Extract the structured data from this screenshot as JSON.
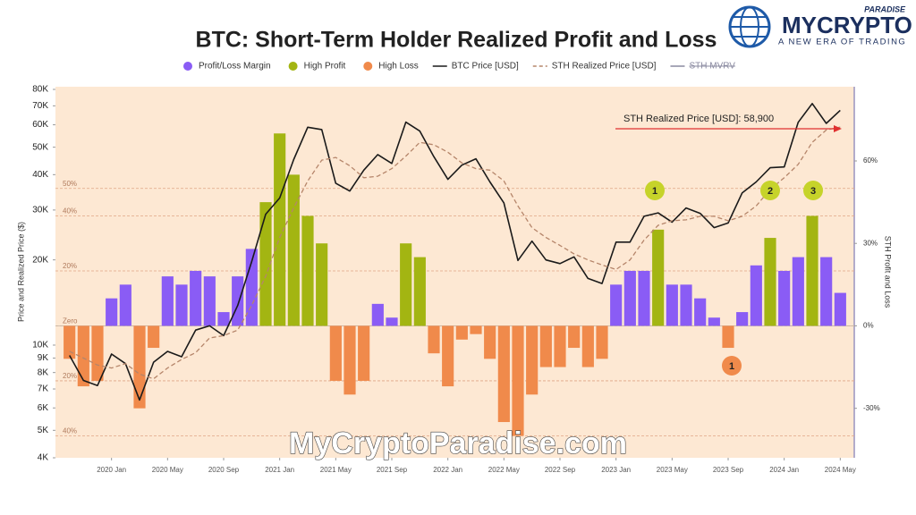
{
  "chart_data": {
    "type": "combo",
    "title": "BTC: Short-Term Holder Realized Profit and Loss",
    "ylabel": "Price and Realized Price ($)",
    "y2label": "STH Profit and Loss",
    "x": [
      "2019-10",
      "2019-11",
      "2019-12",
      "2020-01",
      "2020-02",
      "2020-03",
      "2020-04",
      "2020-05",
      "2020-06",
      "2020-07",
      "2020-08",
      "2020-09",
      "2020-10",
      "2020-11",
      "2020-12",
      "2021-01",
      "2021-02",
      "2021-03",
      "2021-04",
      "2021-05",
      "2021-06",
      "2021-07",
      "2021-08",
      "2021-09",
      "2021-10",
      "2021-11",
      "2021-12",
      "2022-01",
      "2022-02",
      "2022-03",
      "2022-04",
      "2022-05",
      "2022-06",
      "2022-07",
      "2022-08",
      "2022-09",
      "2022-10",
      "2022-11",
      "2022-12",
      "2023-01",
      "2023-02",
      "2023-03",
      "2023-04",
      "2023-05",
      "2023-06",
      "2023-07",
      "2023-08",
      "2023-09",
      "2023-10",
      "2023-11",
      "2023-12",
      "2024-01",
      "2024-02",
      "2024-03",
      "2024-04",
      "2024-05"
    ],
    "xlim": [
      "2019-09",
      "2024-06"
    ],
    "xticks": [
      {
        "value": "2020-01",
        "label": "2020 Jan"
      },
      {
        "value": "2020-05",
        "label": "2020 May"
      },
      {
        "value": "2020-09",
        "label": "2020 Sep"
      },
      {
        "value": "2021-01",
        "label": "2021 Jan"
      },
      {
        "value": "2021-05",
        "label": "2021 May"
      },
      {
        "value": "2021-09",
        "label": "2021 Sep"
      },
      {
        "value": "2022-01",
        "label": "2022 Jan"
      },
      {
        "value": "2022-05",
        "label": "2022 May"
      },
      {
        "value": "2022-09",
        "label": "2022 Sep"
      },
      {
        "value": "2023-01",
        "label": "2023 Jan"
      },
      {
        "value": "2023-05",
        "label": "2023 May"
      },
      {
        "value": "2023-09",
        "label": "2023 Sep"
      },
      {
        "value": "2024-01",
        "label": "2024 Jan"
      },
      {
        "value": "2024-05",
        "label": "2024 May"
      }
    ],
    "ylim": [
      4000,
      80000
    ],
    "log_y": true,
    "yticks": [
      {
        "value": 4000,
        "label": "4K"
      },
      {
        "value": 5000,
        "label": "5K"
      },
      {
        "value": 6000,
        "label": "6K"
      },
      {
        "value": 7000,
        "label": "7K"
      },
      {
        "value": 8000,
        "label": "8K"
      },
      {
        "value": 9000,
        "label": "9K"
      },
      {
        "value": 10000,
        "label": "10K"
      },
      {
        "value": 20000,
        "label": "20K"
      },
      {
        "value": 30000,
        "label": "30K"
      },
      {
        "value": 40000,
        "label": "40K"
      },
      {
        "value": 50000,
        "label": "50K"
      },
      {
        "value": 60000,
        "label": "60K"
      },
      {
        "value": 70000,
        "label": "70K"
      },
      {
        "value": 80000,
        "label": "80K"
      }
    ],
    "y2lim": [
      -48,
      87
    ],
    "y2ticks": [
      {
        "value": -30,
        "label": "-30%"
      },
      {
        "value": 0,
        "label": "0%"
      },
      {
        "value": 30,
        "label": "30%"
      },
      {
        "value": 60,
        "label": "60%"
      }
    ],
    "guides": [
      {
        "value": 50,
        "label": "50%"
      },
      {
        "value": 40,
        "label": "40%"
      },
      {
        "value": 20,
        "label": "20%"
      },
      {
        "value": 0,
        "label": "Zero"
      },
      {
        "value": -20,
        "label": "20%"
      },
      {
        "value": -40,
        "label": "40%"
      }
    ],
    "series": [
      {
        "name": "Profit/Loss Margin",
        "type": "bar",
        "axis": "y2",
        "color": "#8a5cf5",
        "values": [
          null,
          null,
          null,
          10,
          15,
          null,
          null,
          18,
          15,
          20,
          18,
          5,
          18,
          28,
          null,
          null,
          null,
          null,
          null,
          null,
          null,
          null,
          8,
          3,
          null,
          null,
          null,
          null,
          null,
          null,
          null,
          null,
          null,
          null,
          null,
          null,
          null,
          null,
          null,
          15,
          20,
          20,
          null,
          15,
          15,
          10,
          3,
          null,
          5,
          22,
          null,
          20,
          25,
          null,
          25,
          12
        ]
      },
      {
        "name": "High Profit",
        "type": "bar",
        "axis": "y2",
        "color": "#a3b512",
        "values": [
          null,
          null,
          null,
          null,
          null,
          null,
          null,
          null,
          null,
          null,
          null,
          null,
          null,
          null,
          45,
          70,
          55,
          40,
          30,
          null,
          null,
          null,
          null,
          null,
          30,
          25,
          null,
          null,
          null,
          null,
          null,
          null,
          null,
          null,
          null,
          null,
          null,
          null,
          null,
          null,
          null,
          null,
          35,
          null,
          null,
          null,
          null,
          null,
          null,
          null,
          32,
          null,
          null,
          40,
          null,
          null
        ]
      },
      {
        "name": "High Loss",
        "type": "bar",
        "axis": "y2",
        "color": "#f08a4b",
        "values": [
          -12,
          -22,
          -20,
          null,
          null,
          -30,
          -8,
          null,
          null,
          null,
          null,
          null,
          null,
          null,
          null,
          null,
          null,
          null,
          null,
          -20,
          -25,
          -20,
          null,
          null,
          null,
          null,
          -10,
          -22,
          -5,
          -3,
          -12,
          -35,
          -40,
          -25,
          -15,
          -15,
          -8,
          -15,
          -12,
          null,
          null,
          null,
          null,
          null,
          null,
          null,
          null,
          -8,
          null,
          null,
          null,
          null,
          null,
          null,
          null,
          null
        ]
      },
      {
        "name": "BTC Price [USD]",
        "type": "line",
        "axis": "y",
        "color": "#1a1a1a",
        "values": [
          9200,
          7500,
          7200,
          9300,
          8600,
          6400,
          8700,
          9500,
          9100,
          11300,
          11700,
          10800,
          13800,
          19700,
          29000,
          33100,
          45200,
          58800,
          57700,
          37300,
          35000,
          41500,
          47100,
          43800,
          61300,
          57000,
          46300,
          38500,
          43200,
          45500,
          37700,
          31800,
          19900,
          23300,
          20000,
          19400,
          20500,
          17200,
          16500,
          23100,
          23100,
          28500,
          29300,
          27200,
          30500,
          29200,
          26000,
          27000,
          34500,
          37700,
          42300,
          42600,
          61200,
          71300,
          60700,
          67500
        ]
      },
      {
        "name": "STH Realized Price [USD]",
        "type": "line",
        "axis": "y",
        "color": "#b5856a",
        "dashed": true,
        "values": [
          9500,
          9000,
          8500,
          8300,
          8600,
          7900,
          7600,
          8300,
          8900,
          9400,
          10600,
          10800,
          11300,
          13800,
          17500,
          24000,
          30500,
          38000,
          45000,
          46000,
          43000,
          39000,
          39500,
          42000,
          46500,
          52000,
          51000,
          48000,
          44000,
          42000,
          41500,
          38000,
          31000,
          26000,
          24000,
          22500,
          21000,
          20000,
          19200,
          18500,
          20000,
          23500,
          26500,
          27500,
          27700,
          28500,
          28500,
          27500,
          28500,
          31000,
          35500,
          39000,
          43500,
          52000,
          57500,
          58900
        ]
      }
    ],
    "legend_extra": [
      {
        "name": "STH MVRV",
        "color": "#8a8aa0",
        "struck": true
      }
    ],
    "annotation": "STH Realized Price [USD]: 58,900",
    "markers": [
      {
        "label": "1",
        "color": "#c6d32a"
      },
      {
        "label": "2",
        "color": "#c6d32a"
      },
      {
        "label": "3",
        "color": "#c6d32a"
      },
      {
        "label": "1",
        "color": "#f08a4b"
      }
    ],
    "watermark": "MyCryptoParadise.com"
  },
  "logo": {
    "name": "MYCRYPTO",
    "tag": "PARADISE",
    "slogan": "A NEW ERA OF TRADING"
  }
}
